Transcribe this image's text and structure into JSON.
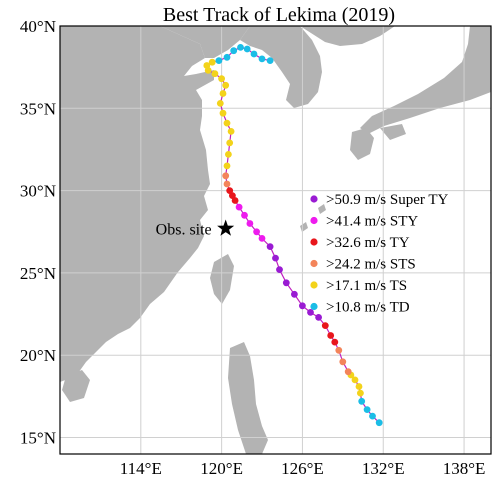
{
  "title": "Best Track of Lekima (2019)",
  "map": {
    "lon_range": [
      108,
      140
    ],
    "lat_range": [
      14,
      40
    ],
    "grid": true,
    "land_color": "#b3b3b3",
    "ocean_color": "#ffffff",
    "grid_color": "#d0d0d0"
  },
  "lat_ticks": [
    {
      "value": 40,
      "label": "40°N"
    },
    {
      "value": 35,
      "label": "35°N"
    },
    {
      "value": 30,
      "label": "30°N"
    },
    {
      "value": 25,
      "label": "25°N"
    },
    {
      "value": 20,
      "label": "20°N"
    },
    {
      "value": 15,
      "label": "15°N"
    }
  ],
  "lon_ticks": [
    {
      "value": 114,
      "label": "114°E"
    },
    {
      "value": 120,
      "label": "120°E"
    },
    {
      "value": 126,
      "label": "126°E"
    },
    {
      "value": 132,
      "label": "132°E"
    },
    {
      "value": 138,
      "label": "138°E"
    }
  ],
  "categories": [
    {
      "key": "superty",
      "label": ">50.9 m/s Super TY",
      "color": "#9a1bd3"
    },
    {
      "key": "sty",
      "label": ">41.4 m/s STY",
      "color": "#ee1bee"
    },
    {
      "key": "ty",
      "label": ">32.6 m/s TY",
      "color": "#e8161c"
    },
    {
      "key": "sts",
      "label": ">24.2 m/s STS",
      "color": "#f3845a"
    },
    {
      "key": "ts",
      "label": ">17.1 m/s TS",
      "color": "#f3d31b"
    },
    {
      "key": "td",
      "label": ">10.8 m/s TD",
      "color": "#1bbde6"
    }
  ],
  "track_line_color": "#c020c0",
  "observation_site": {
    "label": "Obs. site",
    "lon": 120.3,
    "lat": 27.7
  },
  "track": [
    {
      "lon": 131.7,
      "lat": 15.9,
      "cat": "td"
    },
    {
      "lon": 131.2,
      "lat": 16.3,
      "cat": "td"
    },
    {
      "lon": 130.8,
      "lat": 16.7,
      "cat": "td"
    },
    {
      "lon": 130.4,
      "lat": 17.2,
      "cat": "td"
    },
    {
      "lon": 130.3,
      "lat": 17.7,
      "cat": "ts"
    },
    {
      "lon": 130.2,
      "lat": 18.1,
      "cat": "ts"
    },
    {
      "lon": 129.9,
      "lat": 18.5,
      "cat": "ts"
    },
    {
      "lon": 129.6,
      "lat": 18.8,
      "cat": "ts"
    },
    {
      "lon": 129.4,
      "lat": 19.0,
      "cat": "sts"
    },
    {
      "lon": 129.0,
      "lat": 19.6,
      "cat": "sts"
    },
    {
      "lon": 128.7,
      "lat": 20.3,
      "cat": "sts"
    },
    {
      "lon": 128.4,
      "lat": 20.8,
      "cat": "ty"
    },
    {
      "lon": 128.1,
      "lat": 21.2,
      "cat": "ty"
    },
    {
      "lon": 127.7,
      "lat": 21.8,
      "cat": "ty"
    },
    {
      "lon": 127.2,
      "lat": 22.3,
      "cat": "superty"
    },
    {
      "lon": 126.6,
      "lat": 22.6,
      "cat": "superty"
    },
    {
      "lon": 126.0,
      "lat": 23.0,
      "cat": "superty"
    },
    {
      "lon": 125.4,
      "lat": 23.7,
      "cat": "superty"
    },
    {
      "lon": 124.8,
      "lat": 24.4,
      "cat": "superty"
    },
    {
      "lon": 124.3,
      "lat": 25.2,
      "cat": "superty"
    },
    {
      "lon": 124.0,
      "lat": 25.9,
      "cat": "superty"
    },
    {
      "lon": 123.6,
      "lat": 26.6,
      "cat": "superty"
    },
    {
      "lon": 123.0,
      "lat": 27.1,
      "cat": "sty"
    },
    {
      "lon": 122.6,
      "lat": 27.5,
      "cat": "sty"
    },
    {
      "lon": 122.1,
      "lat": 28.0,
      "cat": "sty"
    },
    {
      "lon": 121.7,
      "lat": 28.5,
      "cat": "sty"
    },
    {
      "lon": 121.3,
      "lat": 29.0,
      "cat": "sty"
    },
    {
      "lon": 121.0,
      "lat": 29.4,
      "cat": "ty"
    },
    {
      "lon": 120.8,
      "lat": 29.7,
      "cat": "ty"
    },
    {
      "lon": 120.6,
      "lat": 30.0,
      "cat": "ty"
    },
    {
      "lon": 120.4,
      "lat": 30.4,
      "cat": "sts"
    },
    {
      "lon": 120.3,
      "lat": 30.9,
      "cat": "sts"
    },
    {
      "lon": 120.4,
      "lat": 31.5,
      "cat": "ts"
    },
    {
      "lon": 120.5,
      "lat": 32.2,
      "cat": "ts"
    },
    {
      "lon": 120.6,
      "lat": 32.9,
      "cat": "ts"
    },
    {
      "lon": 120.7,
      "lat": 33.6,
      "cat": "ts"
    },
    {
      "lon": 120.4,
      "lat": 34.1,
      "cat": "ts"
    },
    {
      "lon": 120.1,
      "lat": 34.7,
      "cat": "ts"
    },
    {
      "lon": 119.9,
      "lat": 35.3,
      "cat": "ts"
    },
    {
      "lon": 120.1,
      "lat": 35.9,
      "cat": "ts"
    },
    {
      "lon": 120.3,
      "lat": 36.4,
      "cat": "ts"
    },
    {
      "lon": 120.0,
      "lat": 36.8,
      "cat": "ts"
    },
    {
      "lon": 119.5,
      "lat": 37.1,
      "cat": "ts"
    },
    {
      "lon": 119.0,
      "lat": 37.3,
      "cat": "ts"
    },
    {
      "lon": 118.9,
      "lat": 37.6,
      "cat": "ts"
    },
    {
      "lon": 119.3,
      "lat": 37.8,
      "cat": "ts"
    },
    {
      "lon": 119.8,
      "lat": 37.9,
      "cat": "td"
    },
    {
      "lon": 120.4,
      "lat": 38.1,
      "cat": "td"
    },
    {
      "lon": 120.9,
      "lat": 38.5,
      "cat": "td"
    },
    {
      "lon": 121.4,
      "lat": 38.7,
      "cat": "td"
    },
    {
      "lon": 121.9,
      "lat": 38.6,
      "cat": "td"
    },
    {
      "lon": 122.4,
      "lat": 38.3,
      "cat": "td"
    },
    {
      "lon": 123.0,
      "lat": 38.0,
      "cat": "td"
    },
    {
      "lon": 123.6,
      "lat": 37.9,
      "cat": "td"
    }
  ]
}
